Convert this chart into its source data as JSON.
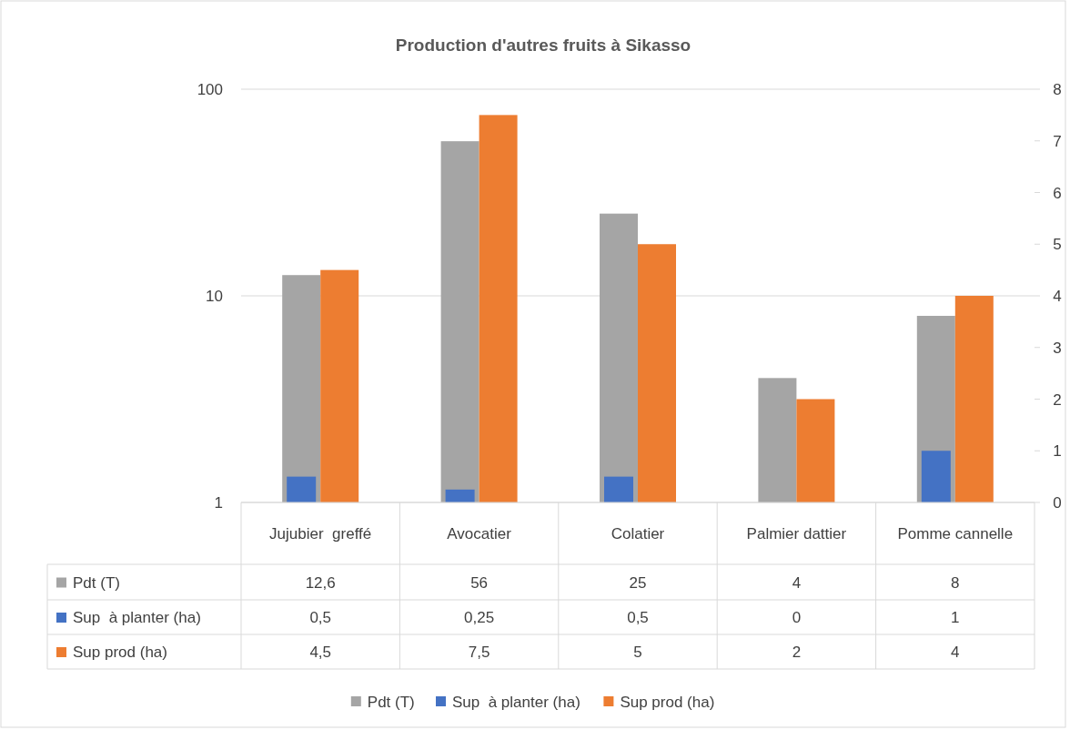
{
  "chart_data": {
    "type": "bar",
    "title": "Production d'autres fruits à Sikasso",
    "categories": [
      "Jujubier  greffé",
      "Avocatier",
      "Colatier",
      "Palmier dattier",
      "Pomme cannelle"
    ],
    "series": [
      {
        "name": "Pdt (T)",
        "color": "#a5a5a5",
        "values": [
          12.6,
          56,
          25,
          4,
          8
        ],
        "value_labels": [
          "12,6",
          "56",
          "25",
          "4",
          "8"
        ]
      },
      {
        "name": "Sup  à planter (ha)",
        "color": "#4472c4",
        "axis": "y2",
        "values": [
          0.5,
          0.25,
          0.5,
          0,
          1
        ],
        "value_labels": [
          "0,5",
          "0,25",
          "0,5",
          "0",
          "1"
        ]
      },
      {
        "name": "Sup prod (ha)",
        "color": "#ed7d31",
        "axis": "y2",
        "values": [
          4.5,
          7.5,
          5,
          2,
          4
        ],
        "value_labels": [
          "4,5",
          "7,5",
          "5",
          "2",
          "4"
        ]
      }
    ],
    "log": "y",
    "ylim": [
      1,
      100
    ],
    "yticks": [
      1,
      10,
      100
    ],
    "y2lim": [
      0,
      8
    ],
    "y2ticks": [
      0,
      1,
      2,
      3,
      4,
      5,
      6,
      7,
      8
    ],
    "grid": "y",
    "legend": "bottom"
  }
}
